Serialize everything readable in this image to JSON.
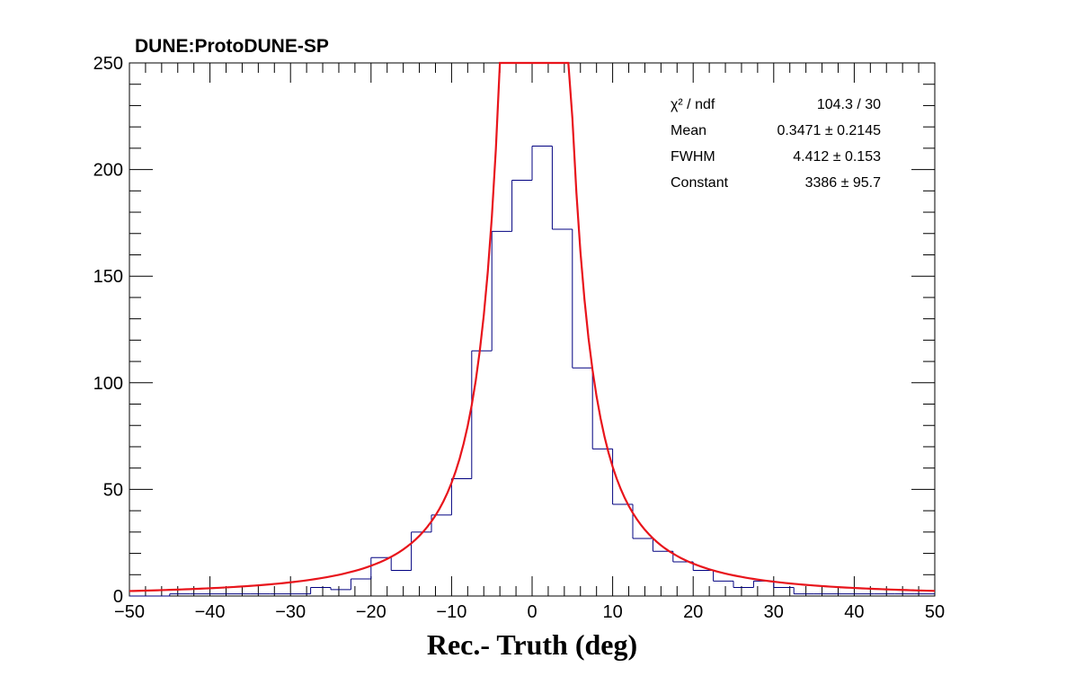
{
  "header": {
    "experiment_label": "DUNE:ProtoDUNE-SP"
  },
  "stats_box": {
    "rows": [
      {
        "label": "χ² / ndf",
        "value": "104.3 / 30"
      },
      {
        "label": "Mean",
        "value": "0.3471 ± 0.2145"
      },
      {
        "label": "FWHM",
        "value": "4.412 ± 0.153"
      },
      {
        "label": "Constant",
        "value": "3386 ± 95.7"
      }
    ]
  },
  "colors": {
    "histogram": "#000080",
    "fit": "#e8141b",
    "axis": "#000000"
  },
  "chart_data": {
    "type": "histogram",
    "title": "",
    "xlabel": "Rec.- Truth (deg)",
    "ylabel": "",
    "xlim": [
      -50,
      50
    ],
    "ylim": [
      0,
      250
    ],
    "x_ticks": [
      -50,
      -40,
      -30,
      -20,
      -10,
      0,
      10,
      20,
      30,
      40,
      50
    ],
    "y_ticks": [
      0,
      50,
      100,
      150,
      200,
      250
    ],
    "bin_edges": [
      -50,
      -47.5,
      -45,
      -42.5,
      -40,
      -37.5,
      -35,
      -32.5,
      -30,
      -27.5,
      -25,
      -22.5,
      -20,
      -17.5,
      -15,
      -12.5,
      -10,
      -7.5,
      -5,
      -2.5,
      0,
      2.5,
      5,
      7.5,
      10,
      12.5,
      15,
      17.5,
      20,
      22.5,
      25,
      27.5,
      30,
      32.5,
      35,
      37.5,
      40,
      42.5,
      45,
      47.5,
      50
    ],
    "histogram": [
      0,
      0,
      1,
      1,
      1,
      1,
      1,
      1,
      1,
      4,
      3,
      8,
      18,
      12,
      30,
      38,
      55,
      115,
      171,
      195,
      211,
      172,
      107,
      69,
      43,
      27,
      21,
      16,
      12,
      7,
      4,
      7,
      4,
      1,
      1,
      1,
      1,
      1,
      1,
      1
    ],
    "fit": {
      "name": "Lorentzian fit",
      "mean": 0.3471,
      "fwhm": 4.412,
      "constant": 3386
    },
    "grid": false
  }
}
